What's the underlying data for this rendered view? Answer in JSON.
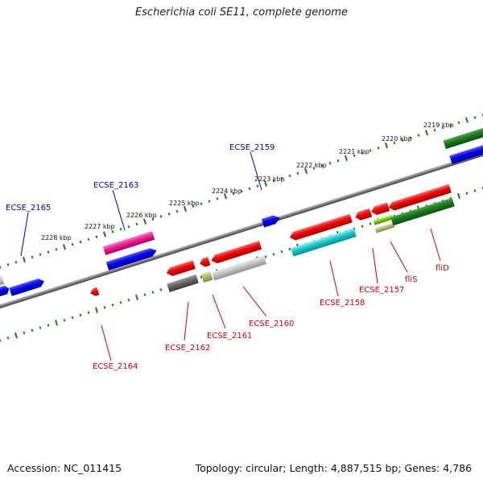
{
  "title": "Escherichia coli SE11, complete genome",
  "footer": {
    "accession": "Accession: NC_011415",
    "summary": "Topology: circular; Length: 4,887,515 bp; Genes: 4,786"
  },
  "kbp_labels": [
    "2219 kbp",
    "2220 kbp",
    "2221 kbp",
    "2222 kbp",
    "2223 kbp",
    "2224 kbp",
    "2225 kbp",
    "2226 kbp",
    "2227 kbp",
    "2228 kbp"
  ],
  "gene_labels": {
    "ecse_2165": "ECSE_2165",
    "ecse_2163": "ECSE_2163",
    "ecse_2159": "ECSE_2159",
    "ecse_2164": "ECSE_2164",
    "ecse_2162": "ECSE_2162",
    "ecse_2161": "ECSE_2161",
    "ecse_2160": "ECSE_2160",
    "ecse_2158": "ECSE_2158",
    "ecse_2157": "ECSE_2157",
    "flis": "fliS",
    "flid": "fliD"
  },
  "colors": {
    "forward_label": "#00009a",
    "reverse_label": "#c80000",
    "tick": "#1a7a1a",
    "backbone": "#777777"
  }
}
